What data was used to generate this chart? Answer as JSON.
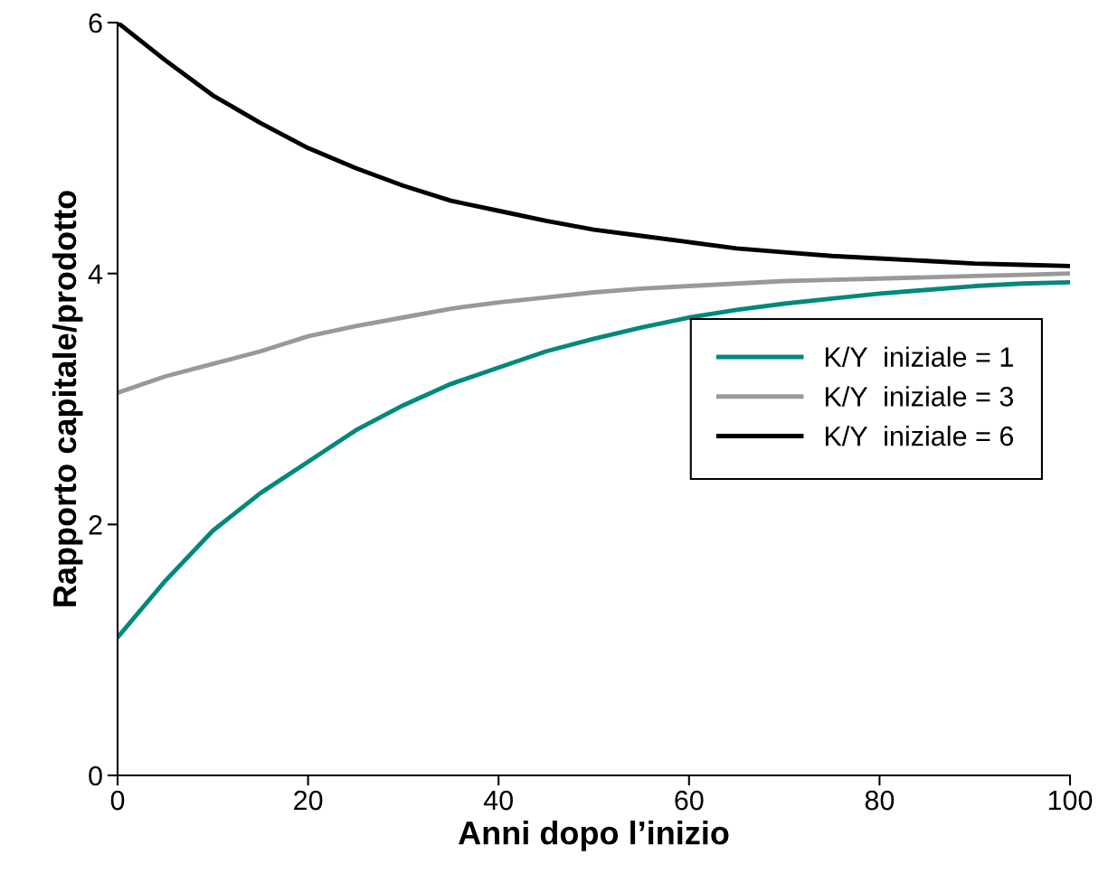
{
  "chart_data": {
    "type": "line",
    "xlabel": "Anni dopo l’inizio",
    "ylabel": "Rapporto capitale/prodotto",
    "x": [
      0,
      5,
      10,
      15,
      20,
      25,
      30,
      35,
      40,
      45,
      50,
      55,
      60,
      65,
      70,
      75,
      80,
      85,
      90,
      95,
      100
    ],
    "series": [
      {
        "name": "K/Y  iniziale = 1",
        "color": "#00897b",
        "values": [
          1.1,
          1.55,
          1.95,
          2.25,
          2.5,
          2.75,
          2.95,
          3.12,
          3.25,
          3.38,
          3.48,
          3.57,
          3.65,
          3.71,
          3.76,
          3.8,
          3.84,
          3.87,
          3.9,
          3.92,
          3.93
        ]
      },
      {
        "name": "K/Y  iniziale = 3",
        "color": "#999999",
        "values": [
          3.05,
          3.18,
          3.28,
          3.38,
          3.5,
          3.58,
          3.65,
          3.72,
          3.77,
          3.81,
          3.85,
          3.88,
          3.9,
          3.92,
          3.94,
          3.95,
          3.96,
          3.97,
          3.98,
          3.99,
          4.0
        ]
      },
      {
        "name": "K/Y  iniziale = 6",
        "color": "#000000",
        "values": [
          6,
          5.7,
          5.42,
          5.2,
          5.0,
          4.84,
          4.7,
          4.58,
          4.5,
          4.42,
          4.35,
          4.3,
          4.25,
          4.2,
          4.17,
          4.14,
          4.12,
          4.1,
          4.08,
          4.07,
          4.06
        ]
      }
    ],
    "xlim": [
      0,
      100
    ],
    "xticks": [
      0,
      20,
      40,
      60,
      80,
      100
    ],
    "ylim": [
      0,
      6
    ],
    "yticks": [
      0,
      2,
      4,
      6
    ],
    "grid": false,
    "legend": "center right",
    "marker": "none",
    "line_style": "solid"
  }
}
